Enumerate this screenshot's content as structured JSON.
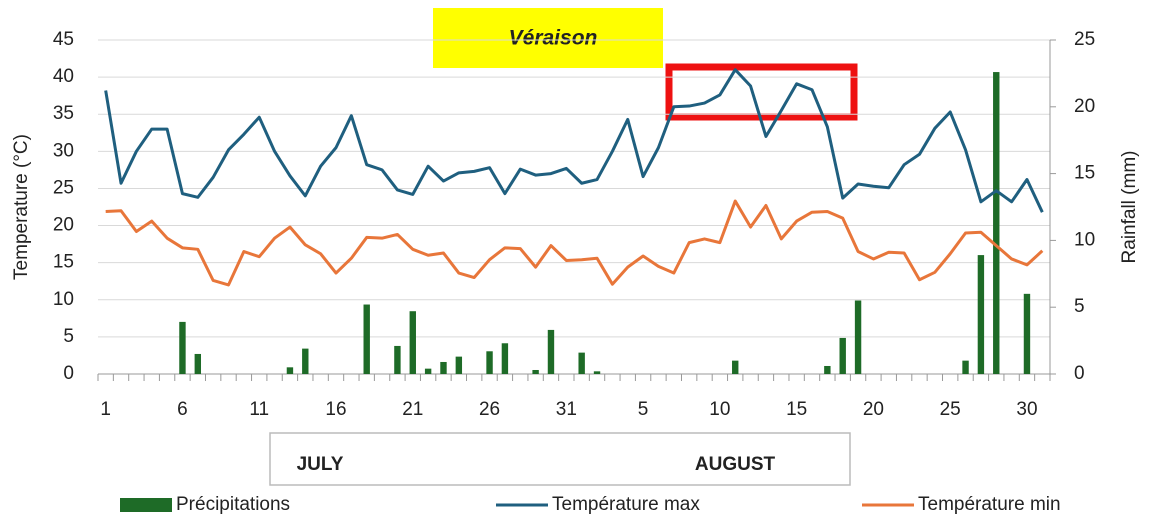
{
  "chart_data": {
    "type": "combo",
    "categories": [
      "1",
      null,
      null,
      null,
      null,
      "6",
      null,
      null,
      null,
      null,
      "11",
      null,
      null,
      null,
      null,
      "16",
      null,
      null,
      null,
      null,
      "21",
      null,
      null,
      null,
      null,
      "26",
      null,
      null,
      null,
      null,
      "31",
      null,
      null,
      null,
      null,
      "5",
      null,
      null,
      null,
      null,
      "10",
      null,
      null,
      null,
      null,
      "15",
      null,
      null,
      null,
      null,
      "20",
      null,
      null,
      null,
      null,
      "25",
      null,
      null,
      null,
      null,
      "30",
      null
    ],
    "ylabel": "Temperature (°C)",
    "y2label": "Rainfall (mm)",
    "ylim": [
      0,
      45
    ],
    "yticks": [
      0,
      5,
      10,
      15,
      20,
      25,
      30,
      35,
      40,
      45
    ],
    "y2lim": [
      0,
      25
    ],
    "y2ticks": [
      0,
      5,
      10,
      15,
      20,
      25
    ],
    "grid": true,
    "annotations": [
      "Véraison"
    ],
    "months": [
      "JULY",
      "AUGUST"
    ],
    "series": [
      {
        "name": "Précipitations",
        "type": "bar",
        "axis": "y2",
        "color": "#1e6b27",
        "values": [
          0,
          0,
          0,
          0,
          0,
          3.9,
          1.5,
          0,
          0,
          0,
          0,
          0,
          0.5,
          1.9,
          0,
          0,
          0,
          5.2,
          0,
          2.1,
          4.7,
          0.4,
          0.9,
          1.3,
          0,
          1.7,
          2.3,
          0,
          0.3,
          3.3,
          0,
          1.6,
          0.2,
          0,
          0,
          0,
          0,
          0,
          0,
          0,
          0,
          1.0,
          0,
          0,
          0,
          0,
          0,
          0.6,
          2.7,
          5.5,
          0,
          0,
          0,
          0,
          0,
          0,
          1.0,
          8.9,
          22.6,
          0,
          6.0,
          0
        ]
      },
      {
        "name": "Température max",
        "type": "line",
        "color": "#1f5f7f",
        "values": [
          38.2,
          25.7,
          30,
          33,
          33,
          24.3,
          23.8,
          26.5,
          30.2,
          32.3,
          34.6,
          30,
          26.7,
          24,
          28,
          30.5,
          34.8,
          28.2,
          27.5,
          24.8,
          24.2,
          28,
          26,
          27.1,
          27.3,
          27.8,
          24.3,
          27.6,
          26.8,
          27,
          27.7,
          25.7,
          26.2,
          30,
          34.3,
          26.6,
          30.5,
          36,
          36.1,
          36.5,
          37.6,
          41,
          38.8,
          32,
          35.5,
          39.1,
          38.3,
          33.3,
          23.7,
          25.6,
          25.3,
          25.1,
          28.2,
          29.6,
          33.1,
          35.3,
          30.2,
          23.2,
          24.7,
          23.2,
          26.2,
          21.8
        ]
      },
      {
        "name": "Température min",
        "type": "line",
        "color": "#e8763a",
        "values": [
          21.9,
          22,
          19.2,
          20.6,
          18.3,
          17,
          16.8,
          12.6,
          12,
          16.5,
          15.8,
          18.3,
          19.8,
          17.4,
          16.2,
          13.6,
          15.6,
          18.4,
          18.3,
          18.8,
          16.8,
          16,
          16.3,
          13.6,
          13,
          15.4,
          17,
          16.9,
          14.4,
          17.3,
          15.3,
          15.4,
          15.6,
          12.1,
          14.4,
          15.9,
          14.5,
          13.6,
          17.7,
          18.2,
          17.7,
          23.3,
          19.8,
          22.7,
          18.2,
          20.6,
          21.8,
          21.9,
          21,
          16.5,
          15.5,
          16.4,
          16.3,
          12.7,
          13.7,
          16.2,
          19,
          19.1,
          17.3,
          15.5,
          14.7,
          16.6
        ]
      }
    ]
  }
}
